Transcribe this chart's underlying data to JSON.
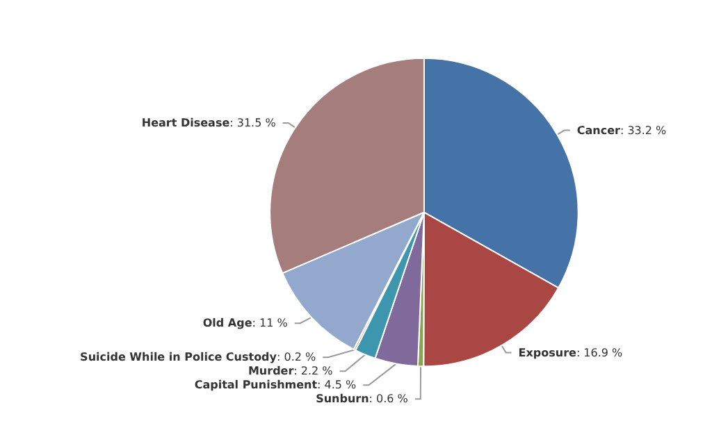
{
  "chart_data": {
    "type": "pie",
    "categories": [
      "Cancer",
      "Exposure",
      "Sunburn",
      "Capital Punishment",
      "Murder",
      "Suicide While in Police Custody",
      "Old Age",
      "Heart Disease"
    ],
    "values": [
      33.2,
      16.9,
      0.6,
      4.5,
      2.2,
      0.2,
      11,
      31.5
    ],
    "value_labels": [
      ": 33.2 %",
      ": 16.9 %",
      ": 0.6 %",
      ": 4.5 %",
      ": 2.2 %",
      ": 0.2 %",
      ": 11 %",
      ": 31.5 %"
    ],
    "colors": [
      "#4572a7",
      "#aa4643",
      "#89a54e",
      "#80699b",
      "#3d96ae",
      "#db843d",
      "#92a8cd",
      "#a47d7c"
    ],
    "legend": false
  }
}
